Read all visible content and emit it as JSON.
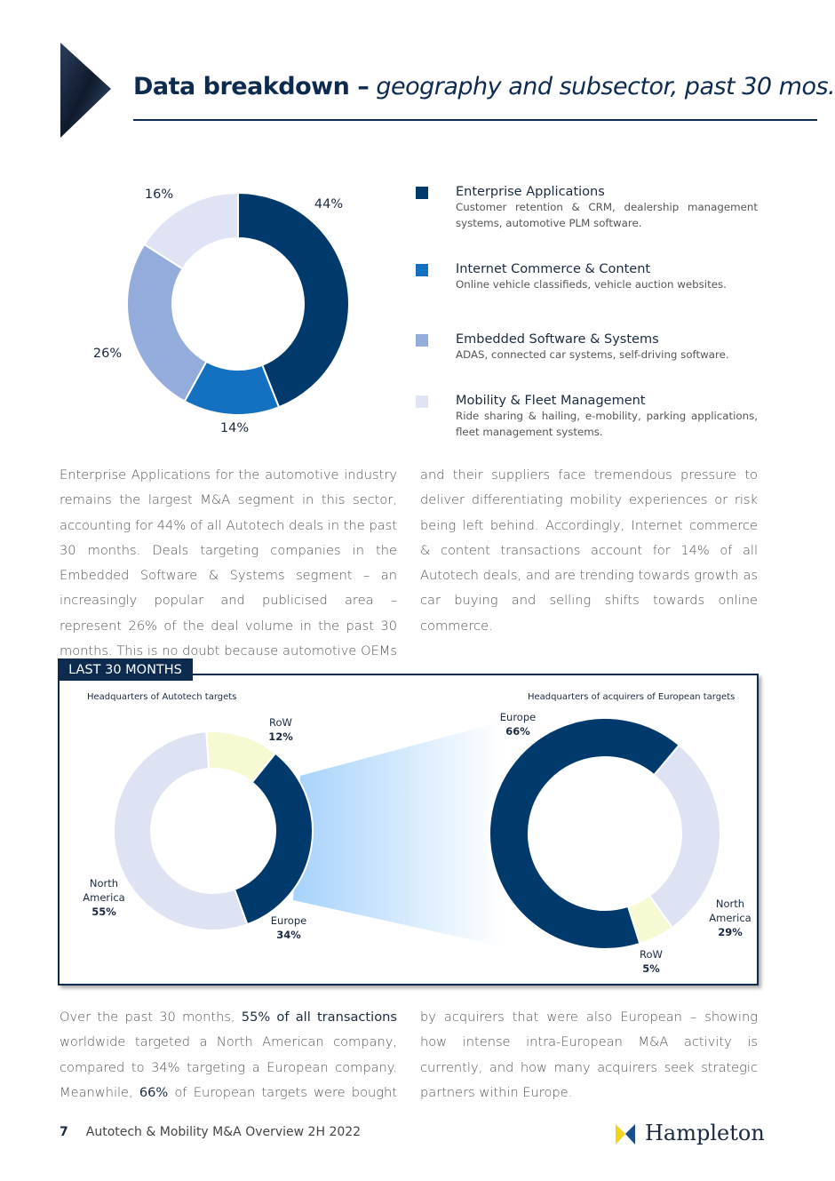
{
  "header": {
    "title": "Data breakdown –",
    "subtitle": "geography and subsector, past 30 mos."
  },
  "chart_data": [
    {
      "type": "donut",
      "categories": [
        "Enterprise Applications",
        "Internet Commerce & Content",
        "Embedded Software & Systems",
        "Mobility & Fleet Management"
      ],
      "values": [
        44,
        14,
        26,
        16
      ],
      "value_labels": [
        "44%",
        "14%",
        "26%",
        "16%"
      ],
      "colors": [
        "#003a6c",
        "#1470c0",
        "#93acdc",
        "#dfe3f3"
      ],
      "descriptions": [
        "Customer retention & CRM, dealership management systems, automotive PLM software.",
        "Online vehicle classifieds, vehicle auction websites.",
        "ADAS, connected car systems, self-driving software.",
        "Ride sharing & hailing, e-mobility, parking applications, fleet management systems."
      ]
    },
    {
      "type": "donut",
      "title": "Headquarters of Autotech targets",
      "categories": [
        "RoW",
        "Europe",
        "North America"
      ],
      "values": [
        12,
        34,
        55
      ],
      "value_labels": [
        "12%",
        "34%",
        "55%"
      ],
      "colors": [
        "#f7f9d2",
        "#003a6c",
        "#dde3f3"
      ]
    },
    {
      "type": "donut",
      "title": "Headquarters of acquirers of European targets",
      "categories": [
        "North America",
        "RoW",
        "Europe"
      ],
      "values": [
        29,
        5,
        66
      ],
      "value_labels": [
        "29%",
        "5%",
        "66%"
      ],
      "colors": [
        "#dde3f3",
        "#f7f9d2",
        "#003a6c"
      ]
    }
  ],
  "body": {
    "paragraph1": "Enterprise Applications for the automotive industry remains the largest M&A segment in this sector, accounting for 44% of all Autotech deals in the past 30 months. Deals targeting companies in the Embedded Software & Systems segment – an increasingly popular and publicised area – represent 26% of the deal volume in the past 30 months. This is no doubt because automotive OEMs and their suppliers face tremendous pressure to deliver differentiating mobility experiences or risk being left behind. Accordingly, Internet commerce & content transactions account for 14% of all Autotech deals, and are trending towards growth as car buying and selling shifts towards online commerce.",
    "tag": "LAST 30 MONTHS",
    "paragraph2": [
      "Over the past 30 months, ",
      "55% of all transactions",
      " worldwide targeted a North American company, compared to 34% targeting a European company. Meanwhile, ",
      "66%",
      " of European targets were bought by acquirers that were also European – showing how intense intra-European M&A activity is currently, and how many acquirers seek strategic partners within Europe."
    ]
  },
  "footer": {
    "page": 7,
    "title": "Autotech & Mobility M&A Overview 2H 2022",
    "brand": "Hampleton"
  }
}
